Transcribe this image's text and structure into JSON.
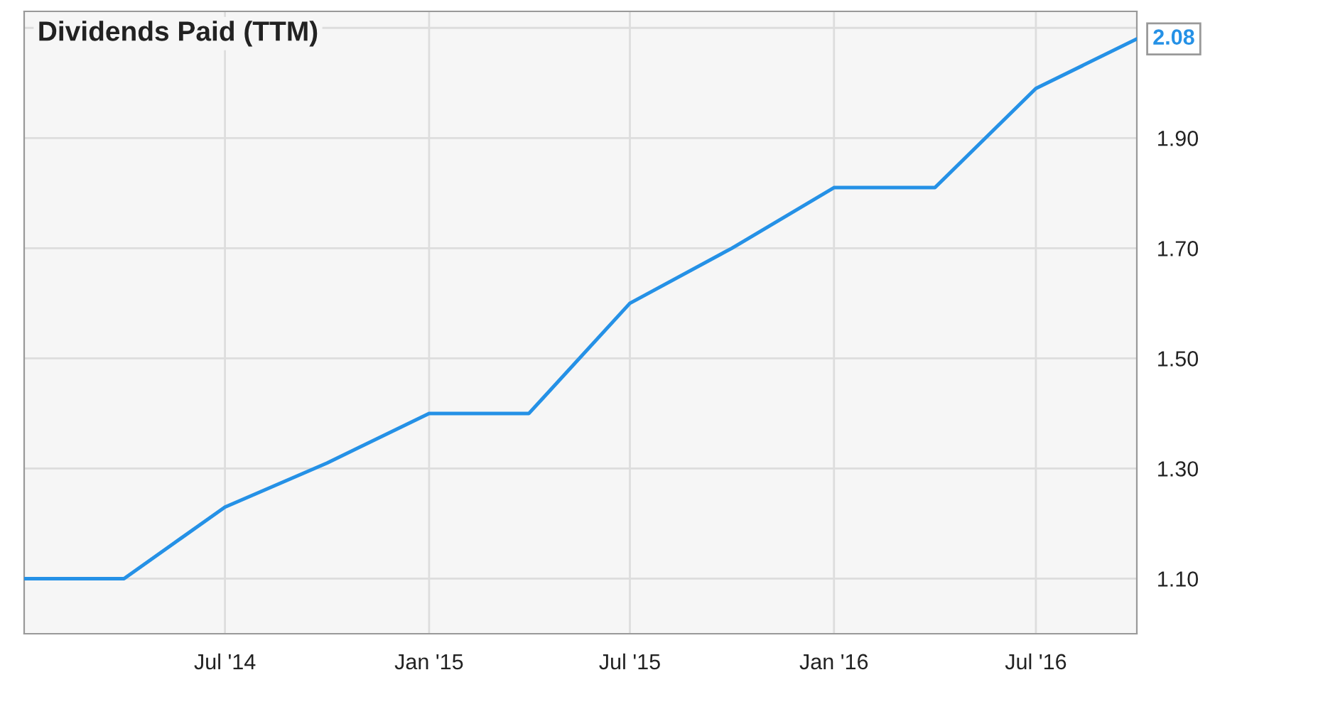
{
  "chart_data": {
    "type": "line",
    "title": "Dividends Paid (TTM)",
    "x": [
      "2014-01-01",
      "2014-04-01",
      "2014-07-01",
      "2014-10-01",
      "2015-01-01",
      "2015-04-01",
      "2015-07-01",
      "2015-10-01",
      "2016-01-01",
      "2016-04-01",
      "2016-07-01",
      "2016-09-30"
    ],
    "series": [
      {
        "color": "#2591e6",
        "values": [
          1.1,
          1.1,
          1.23,
          1.31,
          1.4,
          1.4,
          1.6,
          1.7,
          1.81,
          1.81,
          1.99,
          2.08
        ],
        "value_labels": [
          null,
          null,
          null,
          null,
          null,
          null,
          null,
          null,
          null,
          null,
          null,
          "2.08"
        ]
      }
    ],
    "xlim": [
      "2014-01-01",
      "2016-09-30"
    ],
    "xticks": [
      {
        "value": "2014-07-01",
        "label": "Jul '14"
      },
      {
        "value": "2015-01-01",
        "label": "Jan '15"
      },
      {
        "value": "2015-07-01",
        "label": "Jul '15"
      },
      {
        "value": "2016-01-01",
        "label": "Jan '16"
      },
      {
        "value": "2016-07-01",
        "label": "Jul '16"
      }
    ],
    "ylim": [
      1.0,
      2.13
    ],
    "yticks": [
      {
        "value": 1.1,
        "label": "1.10"
      },
      {
        "value": 1.3,
        "label": "1.30"
      },
      {
        "value": 1.5,
        "label": "1.50"
      },
      {
        "value": 1.7,
        "label": "1.70"
      },
      {
        "value": 1.9,
        "label": "1.90"
      },
      {
        "value": 2.1,
        "label": null
      }
    ],
    "grid": true,
    "marker": "none",
    "line_style": "solid"
  }
}
